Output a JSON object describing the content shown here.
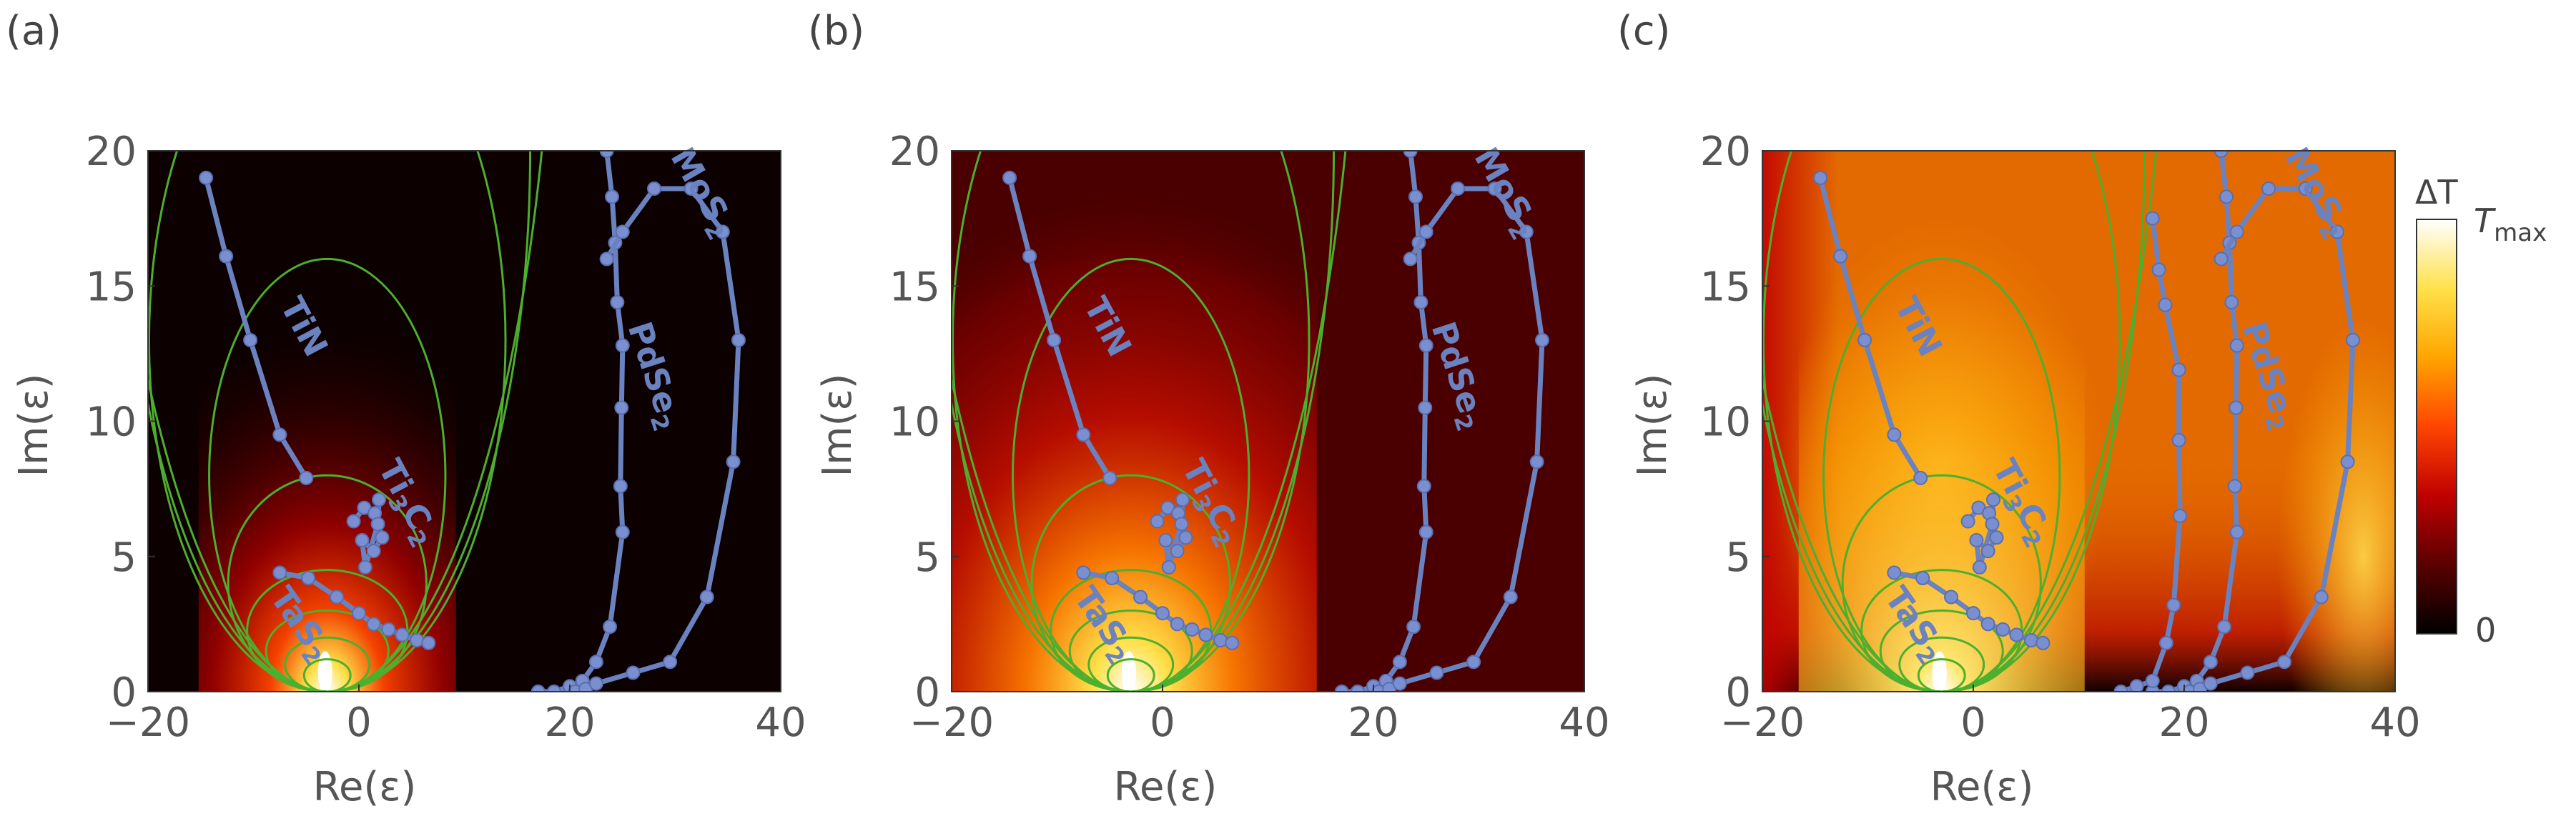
{
  "chart_data": [
    {
      "type": "heatmap",
      "panel_label": "(a)",
      "xlabel": "Re(ε)",
      "ylabel": "Im(ε)",
      "xlim": [
        -20,
        40
      ],
      "ylim": [
        0,
        20
      ],
      "xticks": [
        "−20",
        "0",
        "20",
        "40"
      ],
      "yticks": [
        "0",
        "5",
        "10",
        "15",
        "20"
      ],
      "colormap": "black-red-yellow-white (hot)",
      "contour_color": "#4caf2e",
      "materials": [
        {
          "name": "TiN",
          "color": "#6a82c0",
          "points": [
            [
              -14.5,
              19
            ],
            [
              -12.6,
              16.1
            ],
            [
              -12.6,
              16.1
            ],
            [
              -10.3,
              13
            ],
            [
              -7.5,
              9.5
            ],
            [
              -5,
              7.9
            ]
          ]
        },
        {
          "name": "Ti3C2",
          "label": "Ti₃C₂",
          "points": [
            [
              -0.5,
              6.3
            ],
            [
              0.5,
              6.8
            ],
            [
              1.5,
              6.6
            ],
            [
              2.2,
              5.7
            ],
            [
              1.4,
              5.2
            ],
            [
              0.3,
              5.6
            ],
            [
              0.6,
              4.6
            ],
            [
              1.8,
              6.2
            ],
            [
              1.9,
              7.1
            ]
          ]
        },
        {
          "name": "TaS2",
          "label": "TaS₂",
          "points": [
            [
              -7.5,
              4.4
            ],
            [
              -4.8,
              4.2
            ],
            [
              -2.1,
              3.5
            ],
            [
              0,
              2.9
            ],
            [
              1.4,
              2.5
            ],
            [
              2.8,
              2.3
            ],
            [
              4.1,
              2.1
            ],
            [
              5.5,
              1.9
            ],
            [
              6.6,
              1.8
            ]
          ]
        },
        {
          "name": "PdSe2",
          "label": "PdSe₂",
          "points": [
            [
              17,
              0
            ],
            [
              18.5,
              0
            ],
            [
              20,
              0.2
            ],
            [
              21.2,
              0.4
            ],
            [
              22.5,
              1.1
            ],
            [
              23.8,
              2.4
            ],
            [
              25,
              5.9
            ],
            [
              24.8,
              7.6
            ],
            [
              24.9,
              10.5
            ],
            [
              25,
              12.8
            ],
            [
              24.5,
              14.4
            ],
            [
              24.3,
              16.6
            ],
            [
              24,
              18.3
            ],
            [
              23.5,
              20
            ]
          ]
        },
        {
          "name": "MoS2",
          "label": "MoS₂",
          "points": [
            [
              20.5,
              0
            ],
            [
              21.5,
              0.1
            ],
            [
              22.5,
              0.3
            ],
            [
              26,
              0.7
            ],
            [
              29.5,
              1.1
            ],
            [
              33,
              3.5
            ],
            [
              35.5,
              8.5
            ],
            [
              36,
              13
            ],
            [
              34.5,
              17
            ],
            [
              31.5,
              18.6
            ],
            [
              28,
              18.6
            ],
            [
              25,
              17
            ],
            [
              23.5,
              16
            ]
          ]
        }
      ]
    },
    {
      "type": "heatmap",
      "panel_label": "(b)",
      "xlabel": "Re(ε)",
      "ylabel": "Im(ε)",
      "xlim": [
        -20,
        40
      ],
      "ylim": [
        0,
        20
      ],
      "xticks": [
        "−20",
        "0",
        "20",
        "40"
      ],
      "yticks": [
        "0",
        "5",
        "10",
        "15",
        "20"
      ],
      "colormap": "black-red-yellow-white (hot)"
    },
    {
      "type": "heatmap",
      "panel_label": "(c)",
      "xlabel": "Re(ε)",
      "ylabel": "Im(ε)",
      "xlim": [
        -20,
        40
      ],
      "ylim": [
        0,
        20
      ],
      "xticks": [
        "−20",
        "0",
        "20",
        "40"
      ],
      "yticks": [
        "0",
        "5",
        "10",
        "15",
        "20"
      ],
      "colormap": "black-red-yellow-white (hot)",
      "extra_material": {
        "name": "PdSe2 (panel c variant)",
        "points": [
          [
            14,
            0
          ],
          [
            15.5,
            0.2
          ],
          [
            17,
            0.4
          ],
          [
            18.3,
            1.8
          ],
          [
            19,
            3.2
          ],
          [
            19.6,
            6.5
          ],
          [
            19.5,
            9.3
          ],
          [
            19.5,
            11.9
          ],
          [
            18.2,
            14.3
          ],
          [
            17.6,
            15.6
          ],
          [
            17,
            17.5
          ]
        ]
      }
    }
  ],
  "colorbar": {
    "title": "ΔT",
    "max_label": "T",
    "max_sub": "max",
    "min_label": "0",
    "colors": [
      "#000000",
      "#5a0000",
      "#c00000",
      "#ff4500",
      "#ffa500",
      "#ffe14a",
      "#ffffff"
    ]
  }
}
